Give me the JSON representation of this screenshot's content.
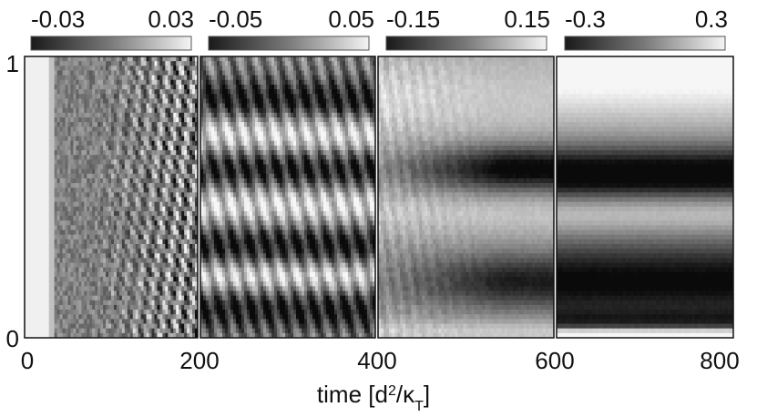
{
  "chart_data": {
    "type": "heatmap",
    "title": "",
    "xlabel_main": "time [d",
    "xlabel_sup": "2",
    "xlabel_mid": "/κ",
    "xlabel_sub": "T",
    "xlabel_end": "]",
    "xlabel": "time [d²/κT]",
    "ylabel": "",
    "xlim": [
      0,
      800
    ],
    "ylim": [
      0,
      1
    ],
    "x_ticks": [
      "0",
      "200",
      "400",
      "600",
      "800"
    ],
    "y_ticks": [
      "0",
      "1"
    ],
    "colormap": "grayscale (black = negative, white = positive)",
    "panels": [
      {
        "t_range": [
          0,
          200
        ],
        "colorbar_range": [
          -0.03,
          0.03
        ],
        "colorbar_labels": [
          "-0.03",
          "0.03"
        ],
        "pattern": "grey noise with a white strip near t≈0–25, oscillatory fine-scale stripes growing after t≈100"
      },
      {
        "t_range": [
          200,
          400
        ],
        "colorbar_range": [
          -0.05,
          0.05
        ],
        "colorbar_labels": [
          "-0.05",
          "0.05"
        ],
        "pattern": "oscillatory horizontal dark/light bands at z≈0.1, 0.3, 0.6, 0.85"
      },
      {
        "t_range": [
          400,
          600
        ],
        "colorbar_range": [
          -0.15,
          0.15
        ],
        "colorbar_labels": [
          "-0.15",
          "0.15"
        ],
        "pattern": "bands coarsen; dark bands emerge near z≈0.6 and z≈0.2"
      },
      {
        "t_range": [
          600,
          800
        ],
        "colorbar_range": [
          -0.3,
          0.3
        ],
        "colorbar_labels": [
          "-0.3",
          "0.3"
        ],
        "pattern": "stable layered profile: white top, dark band z≈0.55–0.6, light z≈0.45, dark z≈0.1–0.3, thin white near z≈0"
      }
    ]
  }
}
